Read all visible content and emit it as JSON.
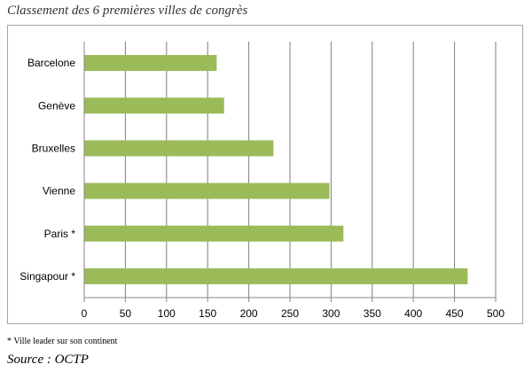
{
  "header": {
    "title": "Classement des 6 premières villes de congrès"
  },
  "chart_data": {
    "type": "bar",
    "orientation": "horizontal",
    "categories": [
      "Barcelone",
      "Genève",
      "Bruxelles",
      "Vienne",
      "Paris *",
      "Singapour *"
    ],
    "values": [
      161,
      170,
      230,
      298,
      315,
      466
    ],
    "xlim": [
      0,
      500
    ],
    "xticks": [
      0,
      50,
      100,
      150,
      200,
      250,
      300,
      350,
      400,
      450,
      500
    ],
    "grid": true,
    "colors": {
      "bar": "#9bbb59",
      "grid": "#7f7f7f"
    }
  },
  "footer": {
    "footnote": "* Ville leader sur son continent",
    "source": "Source : OCTP"
  }
}
